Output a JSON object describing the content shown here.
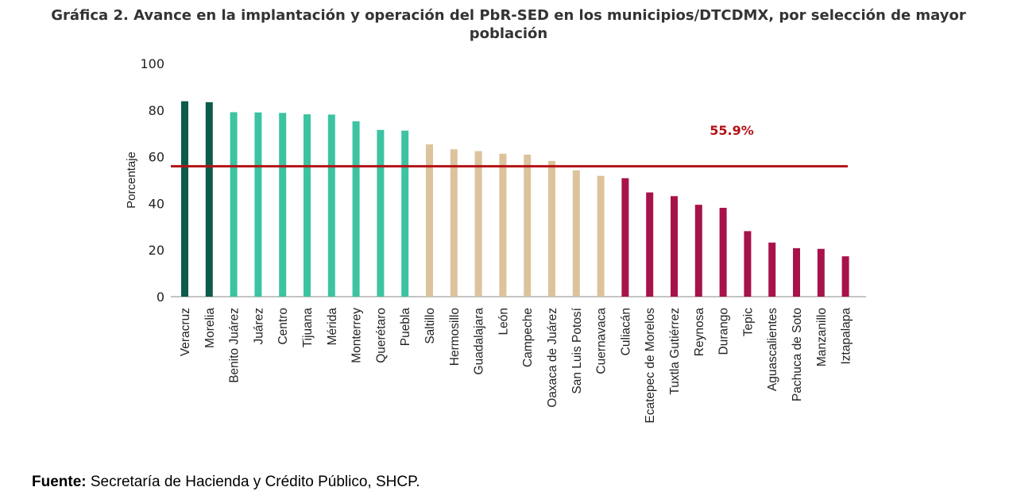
{
  "chart_data": {
    "type": "bar",
    "title": "Gráfica 2. Avance en la implantación y operación del PbR-SED en los municipios/DTCDMX, por selección de mayor población",
    "ylabel": "Porcentaje",
    "xlabel": "",
    "ylim": [
      0,
      100
    ],
    "yticks": [
      0,
      20,
      40,
      60,
      80,
      100
    ],
    "grid": false,
    "categories": [
      "Veracruz",
      "Morelia",
      "Benito Juárez",
      "Juárez",
      "Centro",
      "Tijuana",
      "Mérida",
      "Monterrey",
      "Querétaro",
      "Puebla",
      "Saltillo",
      "Hermosillo",
      "Guadalajara",
      "León",
      "Campeche",
      "Oaxaca de Juárez",
      "San Luis Potosí",
      "Cuernavaca",
      "Culiacán",
      "Ecatepec de Morelos",
      "Tuxtla Gutiérrez",
      "Reynosa",
      "Durango",
      "Tepic",
      "Aguascalientes",
      "Pachuca de Soto",
      "Manzanillo",
      "Iztapalapa"
    ],
    "values": [
      83.8,
      83.4,
      79.1,
      79.0,
      78.8,
      78.2,
      78.1,
      75.2,
      71.5,
      71.2,
      65.3,
      63.2,
      62.4,
      61.3,
      60.9,
      58.2,
      54.2,
      51.8,
      50.8,
      44.7,
      43.1,
      39.4,
      38.1,
      28.1,
      23.2,
      20.8,
      20.5,
      17.3
    ],
    "bar_colors": [
      "#0b5c4a",
      "#0b5c4a",
      "#3cc3a2",
      "#3cc3a2",
      "#3cc3a2",
      "#3cc3a2",
      "#3cc3a2",
      "#3cc3a2",
      "#3cc3a2",
      "#3cc3a2",
      "#dcc39c",
      "#dcc39c",
      "#dcc39c",
      "#dcc39c",
      "#dcc39c",
      "#dcc39c",
      "#dcc39c",
      "#dcc39c",
      "#a8124a",
      "#a8124a",
      "#a8124a",
      "#a8124a",
      "#a8124a",
      "#a8124a",
      "#a8124a",
      "#a8124a",
      "#a8124a",
      "#a8124a"
    ],
    "reference_line": {
      "value": 55.9,
      "label": "55.9%",
      "color": "#b31217"
    }
  },
  "source": {
    "label": "Fuente:",
    "text": " Secretaría de Hacienda y Crédito Público, SHCP."
  }
}
